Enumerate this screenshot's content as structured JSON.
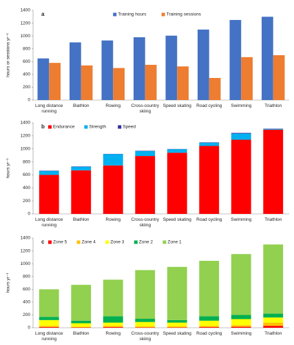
{
  "chart_data": [
    {
      "type": "bar",
      "label": "a",
      "ylabel": "hours or sessions yr⁻¹",
      "categories": [
        "Long distance running",
        "Biathlon",
        "Rowing",
        "Cross-country skiing",
        "Speed skating",
        "Road cycling",
        "Swimming",
        "Triathlon"
      ],
      "series": [
        {
          "name": "Training hours",
          "color": "#4472c4",
          "values": [
            650,
            900,
            930,
            980,
            1005,
            1100,
            1250,
            1300
          ]
        },
        {
          "name": "Training sessions",
          "color": "#ed7d31",
          "values": [
            580,
            540,
            500,
            550,
            525,
            345,
            670,
            700
          ]
        }
      ],
      "ylim": [
        0,
        1400
      ],
      "yticks": [
        0,
        200,
        400,
        600,
        800,
        1000,
        1200,
        1400
      ],
      "legend": "top"
    },
    {
      "type": "stacked_bar",
      "label": "b",
      "ylabel": "hours yr⁻¹",
      "categories": [
        "Long distance running",
        "Biathlon",
        "Rowing",
        "Cross-country skiing",
        "Speed skating",
        "Road cycling",
        "Swimming",
        "Triathlon"
      ],
      "series": [
        {
          "name": "Endurance",
          "color": "#ff0000",
          "values": [
            600,
            670,
            745,
            890,
            940,
            1045,
            1140,
            1295
          ]
        },
        {
          "name": "Strength",
          "color": "#00b0f0",
          "values": [
            60,
            55,
            175,
            75,
            55,
            50,
            95,
            10
          ]
        },
        {
          "name": "Speed",
          "color": "#3030a0",
          "values": [
            5,
            5,
            3,
            5,
            3,
            5,
            10,
            5
          ]
        }
      ],
      "ylim": [
        0,
        1400
      ],
      "yticks": [
        0,
        200,
        400,
        600,
        800,
        1000,
        1200,
        1400
      ],
      "legend": "top-left"
    },
    {
      "type": "stacked_bar",
      "label": "c",
      "ylabel": "hours yr⁻¹",
      "categories": [
        "Long distance running",
        "Biathlon",
        "Rowing",
        "Cross-country skiing",
        "Speed skating",
        "Road cycling",
        "Swimming",
        "Triathlon"
      ],
      "series": [
        {
          "name": "Zone 5",
          "color": "#ff0000",
          "values": [
            10,
            5,
            10,
            5,
            5,
            10,
            15,
            30
          ]
        },
        {
          "name": "Zone 4",
          "color": "#ffc000",
          "values": [
            20,
            10,
            20,
            15,
            15,
            20,
            25,
            50
          ]
        },
        {
          "name": "Zone 3",
          "color": "#ffff00",
          "values": [
            90,
            55,
            50,
            70,
            60,
            80,
            95,
            80
          ]
        },
        {
          "name": "Zone 2",
          "color": "#00b050",
          "values": [
            50,
            40,
            100,
            50,
            40,
            70,
            65,
            60
          ]
        },
        {
          "name": "Zone 1",
          "color": "#92d050",
          "values": [
            430,
            560,
            570,
            760,
            830,
            865,
            950,
            1080
          ]
        }
      ],
      "ylim": [
        0,
        1400
      ],
      "yticks": [
        0,
        200,
        400,
        600,
        800,
        1000,
        1200,
        1400
      ],
      "legend": "top-left"
    }
  ]
}
